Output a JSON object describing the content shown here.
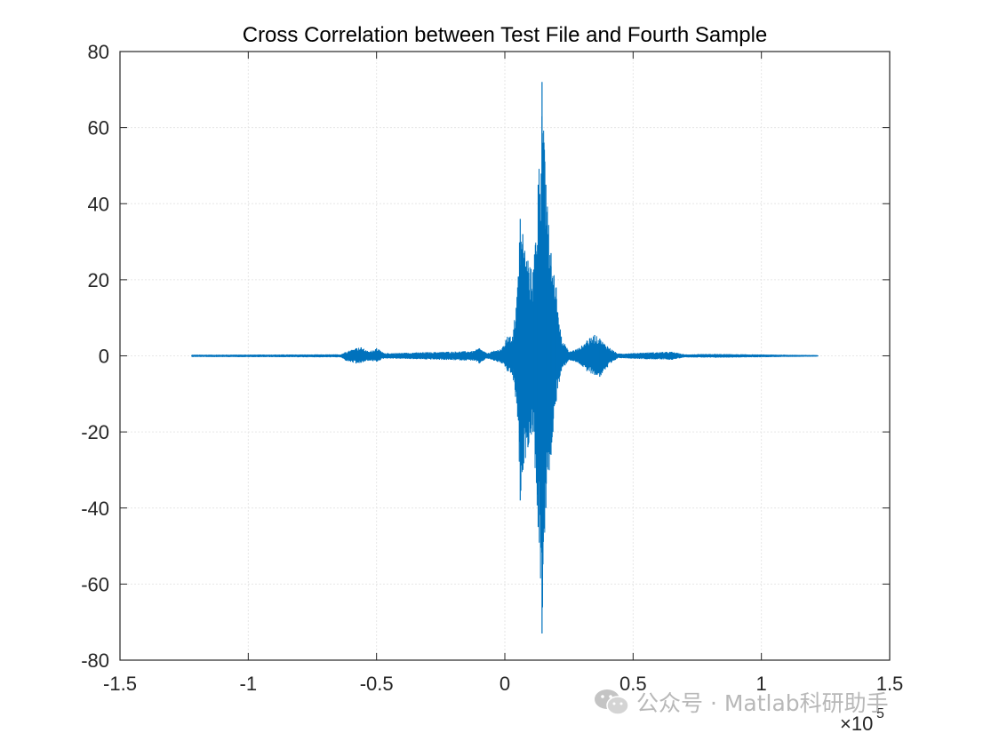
{
  "chart_data": {
    "type": "line",
    "title": "Cross Correlation between Test File and Fourth Sample",
    "xlabel": "",
    "ylabel": "",
    "xlim": [
      -150000,
      150000
    ],
    "ylim": [
      -80,
      80
    ],
    "x_exponent_label": "×10",
    "x_exponent_power": "5",
    "xticks": [
      -150000,
      -100000,
      -50000,
      0,
      50000,
      100000,
      150000
    ],
    "xtick_labels": [
      "-1.5",
      "-1",
      "-0.5",
      "0",
      "0.5",
      "1",
      "1.5"
    ],
    "yticks": [
      80,
      60,
      40,
      20,
      0,
      -20,
      -40,
      -60,
      -80
    ],
    "ytick_labels": [
      "80",
      "60",
      "40",
      "20",
      "0",
      "-20",
      "-40",
      "-60",
      "-80"
    ],
    "grid": true,
    "line_color": "#0072BD",
    "series": [
      {
        "x_range": [
          -122000,
          122000
        ],
        "envelope": [
          {
            "x": -122000,
            "max": 0.2,
            "min": -0.2
          },
          {
            "x": -64000,
            "max": 0.3,
            "min": -0.3
          },
          {
            "x": -62000,
            "max": 1.0,
            "min": -1.2
          },
          {
            "x": -58000,
            "max": 2.0,
            "min": -2.0
          },
          {
            "x": -56000,
            "max": 2.2,
            "min": -1.8
          },
          {
            "x": -53000,
            "max": 1.0,
            "min": -1.2
          },
          {
            "x": -50000,
            "max": 2.0,
            "min": -1.5
          },
          {
            "x": -47000,
            "max": 0.6,
            "min": -0.6
          },
          {
            "x": -35000,
            "max": 0.8,
            "min": -0.8
          },
          {
            "x": -12000,
            "max": 1.2,
            "min": -1.2
          },
          {
            "x": -10000,
            "max": 2.0,
            "min": -2.0
          },
          {
            "x": -7000,
            "max": 0.6,
            "min": -0.6
          },
          {
            "x": -1000,
            "max": 2.0,
            "min": -2.0
          },
          {
            "x": 1000,
            "max": 5.0,
            "min": -4.0
          },
          {
            "x": 3000,
            "max": 5.0,
            "min": -5.0
          },
          {
            "x": 5000,
            "max": 18.0,
            "min": -16.0
          },
          {
            "x": 6000,
            "max": 36.0,
            "min": -38.0
          },
          {
            "x": 7000,
            "max": 32.0,
            "min": -30.0
          },
          {
            "x": 9000,
            "max": 25.0,
            "min": -24.0
          },
          {
            "x": 11000,
            "max": 22.0,
            "min": -20.0
          },
          {
            "x": 13000,
            "max": 45.0,
            "min": -45.0
          },
          {
            "x": 14500,
            "max": 72.0,
            "min": -73.0
          },
          {
            "x": 16000,
            "max": 45.0,
            "min": -40.0
          },
          {
            "x": 18000,
            "max": 27.0,
            "min": -26.0
          },
          {
            "x": 20000,
            "max": 18.0,
            "min": -12.0
          },
          {
            "x": 22000,
            "max": 5.0,
            "min": -4.0
          },
          {
            "x": 25000,
            "max": 1.0,
            "min": -1.0
          },
          {
            "x": 29000,
            "max": 2.0,
            "min": -2.0
          },
          {
            "x": 32000,
            "max": 4.0,
            "min": -4.0
          },
          {
            "x": 35000,
            "max": 5.5,
            "min": -5.0
          },
          {
            "x": 37000,
            "max": 4.5,
            "min": -5.5
          },
          {
            "x": 40000,
            "max": 2.5,
            "min": -3.0
          },
          {
            "x": 44000,
            "max": 0.5,
            "min": -0.5
          },
          {
            "x": 55000,
            "max": 0.8,
            "min": -0.8
          },
          {
            "x": 65000,
            "max": 1.0,
            "min": -1.0
          },
          {
            "x": 70000,
            "max": 0.3,
            "min": -0.3
          },
          {
            "x": 82000,
            "max": 0.4,
            "min": -0.4
          },
          {
            "x": 122000,
            "max": 0.1,
            "min": -0.1
          }
        ]
      }
    ]
  },
  "watermark": {
    "text": "公众号 · Matlab科研助手",
    "icon": "wechat-icon"
  }
}
